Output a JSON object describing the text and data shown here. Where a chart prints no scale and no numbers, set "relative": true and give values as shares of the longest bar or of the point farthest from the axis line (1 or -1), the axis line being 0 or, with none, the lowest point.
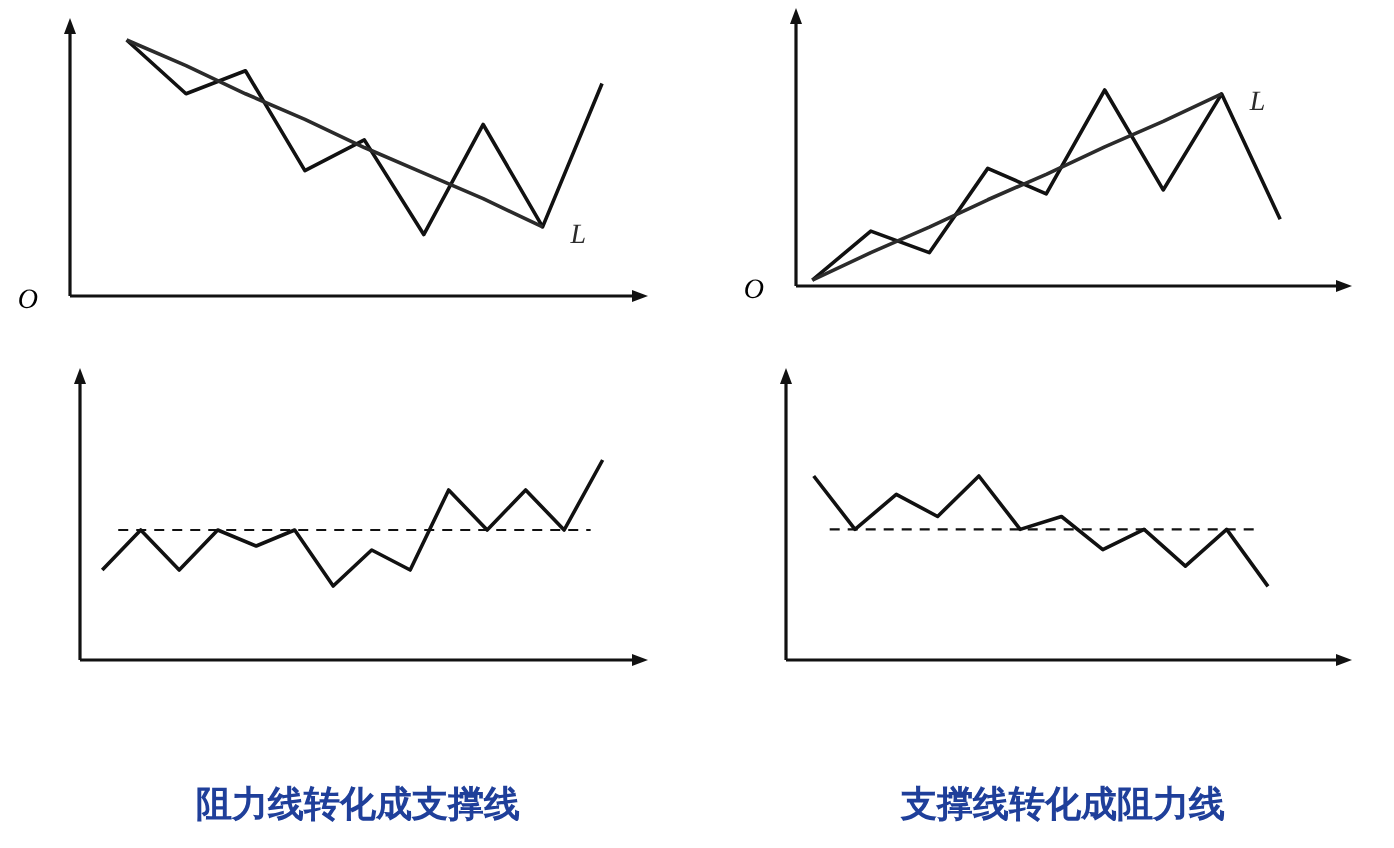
{
  "chart_data": [
    {
      "type": "line",
      "relative": true,
      "annotations": [
        "O"
      ],
      "categories": [
        null,
        null,
        null,
        null,
        null,
        null,
        null,
        null,
        null
      ],
      "series": [
        {
          "color": "#111111",
          "values": [
            1,
            0.79,
            0.88,
            0.49,
            0.61,
            0.24,
            0.67,
            0.27,
            0.83
          ]
        },
        {
          "name": "L",
          "color": "#2b2b2b",
          "values": [
            1,
            0.9,
            0.79,
            0.69,
            0.58,
            0.48,
            0.38,
            0.27,
            null
          ]
        }
      ]
    },
    {
      "type": "line",
      "relative": true,
      "annotations": [
        "O"
      ],
      "categories": [
        null,
        null,
        null,
        null,
        null,
        null,
        null,
        null,
        null
      ],
      "series": [
        {
          "color": "#111111",
          "values": [
            0.03,
            0.28,
            0.17,
            0.6,
            0.47,
            1,
            0.49,
            0.98,
            0.34
          ]
        },
        {
          "name": "L",
          "color": "#2b2b2b",
          "values": [
            0.03,
            0.17,
            0.3,
            0.44,
            0.57,
            0.71,
            0.84,
            0.98,
            null
          ]
        }
      ]
    },
    {
      "type": "line",
      "relative": true,
      "title": "阻力线转化成支撑线",
      "categories": [
        null,
        null,
        null,
        null,
        null,
        null,
        null,
        null,
        null,
        null,
        null,
        null,
        null,
        null
      ],
      "ref_lines": [
        {
          "axis": "y",
          "value": 0.65,
          "line_style": "dashed"
        }
      ],
      "series": [
        {
          "color": "#111111",
          "values": [
            0.45,
            0.65,
            0.45,
            0.65,
            0.57,
            0.65,
            0.37,
            0.55,
            0.45,
            0.85,
            0.65,
            0.85,
            0.65,
            1
          ]
        }
      ]
    },
    {
      "type": "line",
      "relative": true,
      "title": "支撑线转化成阻力线",
      "categories": [
        null,
        null,
        null,
        null,
        null,
        null,
        null,
        null,
        null,
        null,
        null,
        null
      ],
      "ref_lines": [
        {
          "axis": "y",
          "value": 0.71,
          "line_style": "dashed"
        }
      ],
      "series": [
        {
          "color": "#111111",
          "values": [
            1,
            0.71,
            0.9,
            0.78,
            1,
            0.71,
            0.78,
            0.6,
            0.71,
            0.51,
            0.71,
            0.4
          ]
        }
      ]
    }
  ]
}
